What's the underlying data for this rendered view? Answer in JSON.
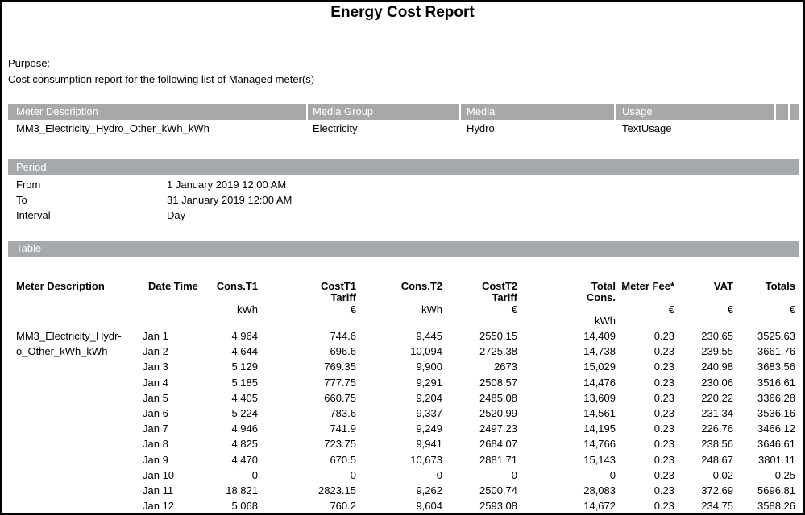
{
  "title": "Energy Cost Report",
  "purpose": {
    "label": "Purpose:",
    "text": "Cost consumption report for the following list of Managed meter(s)"
  },
  "meters": {
    "columns": [
      "Meter Description",
      "Media Group",
      "Media",
      "Usage"
    ],
    "rows": [
      {
        "meter_description": "MM3_Electricity_Hydro_Other_kWh_kWh",
        "media_group": "Electricity",
        "media": "Hydro",
        "usage": "TextUsage"
      }
    ]
  },
  "period": {
    "header": "Period",
    "from_label": "From",
    "from_value": "1 January 2019 12:00 AM",
    "to_label": "To",
    "to_value": "31 January 2019 12:00 AM",
    "interval_label": "Interval",
    "interval_value": "Day"
  },
  "table": {
    "header": "Table",
    "columns": [
      {
        "lines": [
          "Meter Description"
        ],
        "unit": ""
      },
      {
        "lines": [
          "Date Time"
        ],
        "unit": ""
      },
      {
        "lines": [
          "Cons.T1"
        ],
        "unit": "kWh"
      },
      {
        "lines": [
          "CostT1",
          "Tariff"
        ],
        "unit": "€"
      },
      {
        "lines": [
          "Cons.T2"
        ],
        "unit": "kWh"
      },
      {
        "lines": [
          "CostT2",
          "Tariff"
        ],
        "unit": "€"
      },
      {
        "lines": [
          "Total",
          "Cons."
        ],
        "unit": "",
        "unit_below": "kWh"
      },
      {
        "lines": [
          "Meter Fee*"
        ],
        "unit": "€"
      },
      {
        "lines": [
          "VAT"
        ],
        "unit": "€"
      },
      {
        "lines": [
          "Totals"
        ],
        "unit": "€"
      }
    ],
    "meter_name_lines": [
      "MM3_Electricity_Hydr-",
      "o_Other_kWh_kWh"
    ],
    "rows": [
      [
        "Jan 1",
        "4,964",
        "744.6",
        "9,445",
        "2550.15",
        "14,409",
        "0.23",
        "230.65",
        "3525.63"
      ],
      [
        "Jan 2",
        "4,644",
        "696.6",
        "10,094",
        "2725.38",
        "14,738",
        "0.23",
        "239.55",
        "3661.76"
      ],
      [
        "Jan 3",
        "5,129",
        "769.35",
        "9,900",
        "2673",
        "15,029",
        "0.23",
        "240.98",
        "3683.56"
      ],
      [
        "Jan 4",
        "5,185",
        "777.75",
        "9,291",
        "2508.57",
        "14,476",
        "0.23",
        "230.06",
        "3516.61"
      ],
      [
        "Jan 5",
        "4,405",
        "660.75",
        "9,204",
        "2485.08",
        "13,609",
        "0.23",
        "220.22",
        "3366.28"
      ],
      [
        "Jan 6",
        "5,224",
        "783.6",
        "9,337",
        "2520.99",
        "14,561",
        "0.23",
        "231.34",
        "3536.16"
      ],
      [
        "Jan 7",
        "4,946",
        "741.9",
        "9,249",
        "2497.23",
        "14,195",
        "0.23",
        "226.76",
        "3466.12"
      ],
      [
        "Jan 8",
        "4,825",
        "723.75",
        "9,941",
        "2684.07",
        "14,766",
        "0.23",
        "238.56",
        "3646.61"
      ],
      [
        "Jan 9",
        "4,470",
        "670.5",
        "10,673",
        "2881.71",
        "15,143",
        "0.23",
        "248.67",
        "3801.11"
      ],
      [
        "Jan 10",
        "0",
        "0",
        "0",
        "0",
        "0",
        "0.23",
        "0.02",
        "0.25"
      ],
      [
        "Jan 11",
        "18,821",
        "2823.15",
        "9,262",
        "2500.74",
        "28,083",
        "0.23",
        "372.69",
        "5696.81"
      ],
      [
        "Jan 12",
        "5,068",
        "760.2",
        "9,604",
        "2593.08",
        "14,672",
        "0.23",
        "234.75",
        "3588.26"
      ]
    ]
  },
  "colors": {
    "section_bar_gray": "#a6a9ab",
    "bar_text": "#ffffff",
    "page_border": "#000000",
    "body_text": "#000000"
  }
}
